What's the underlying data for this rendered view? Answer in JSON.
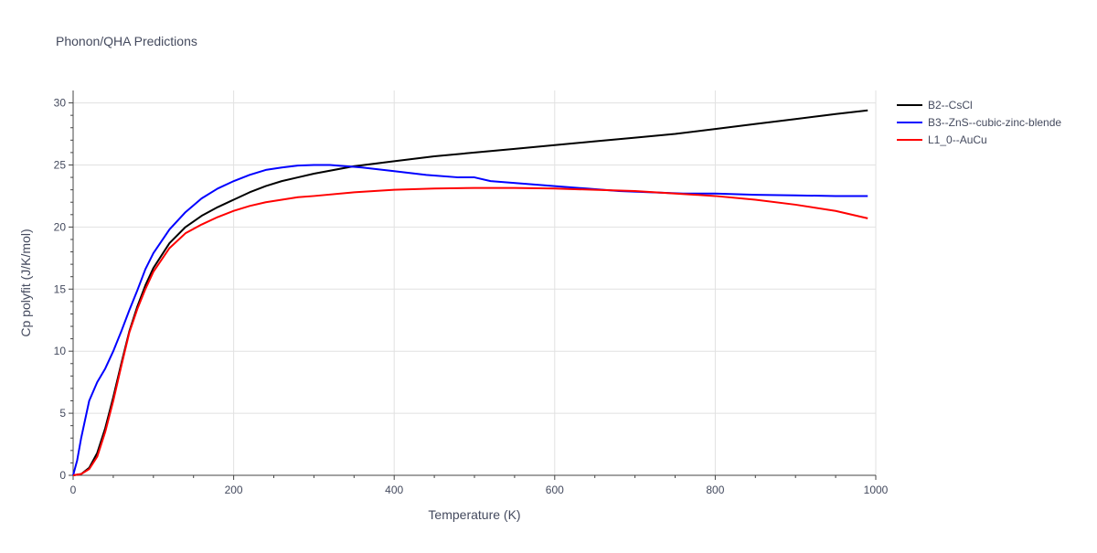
{
  "chart_data": {
    "type": "line",
    "title": "Phonon/QHA Predictions",
    "xlabel": "Temperature (K)",
    "ylabel": "Cp polyfit (J/K/mol)",
    "xlim": [
      0,
      1000
    ],
    "ylim": [
      0,
      31
    ],
    "xticks": [
      0,
      200,
      400,
      600,
      800,
      1000
    ],
    "yticks": [
      0,
      5,
      10,
      15,
      20,
      25,
      30
    ],
    "grid": true,
    "legend_position": "top-right",
    "series": [
      {
        "name": "B2--CsCl",
        "color": "#000000",
        "x": [
          0,
          10,
          20,
          30,
          40,
          50,
          60,
          70,
          80,
          90,
          100,
          120,
          140,
          160,
          180,
          200,
          220,
          240,
          260,
          280,
          300,
          350,
          400,
          450,
          500,
          550,
          600,
          650,
          700,
          750,
          800,
          850,
          900,
          950,
          990
        ],
        "y": [
          0,
          0.1,
          0.6,
          1.8,
          3.8,
          6.3,
          9.0,
          11.6,
          13.6,
          15.3,
          16.7,
          18.7,
          20.0,
          20.9,
          21.6,
          22.2,
          22.8,
          23.3,
          23.7,
          24.0,
          24.3,
          24.9,
          25.3,
          25.7,
          26.0,
          26.3,
          26.6,
          26.9,
          27.2,
          27.5,
          27.9,
          28.3,
          28.7,
          29.1,
          29.4
        ]
      },
      {
        "name": "B3--ZnS--cubic-zinc-blende",
        "color": "#0000ff",
        "x": [
          0,
          5,
          10,
          20,
          30,
          40,
          50,
          60,
          70,
          80,
          90,
          100,
          120,
          140,
          160,
          180,
          200,
          220,
          240,
          260,
          280,
          300,
          320,
          340,
          360,
          400,
          440,
          480,
          500,
          520,
          540,
          560,
          580,
          600,
          640,
          680,
          720,
          760,
          800,
          850,
          900,
          950,
          990
        ],
        "y": [
          0,
          1.2,
          3.0,
          6.0,
          7.5,
          8.6,
          10.0,
          11.6,
          13.3,
          14.9,
          16.6,
          17.9,
          19.8,
          21.2,
          22.3,
          23.1,
          23.7,
          24.2,
          24.6,
          24.8,
          24.95,
          25.0,
          25.0,
          24.9,
          24.8,
          24.5,
          24.2,
          24.0,
          24.0,
          23.7,
          23.6,
          23.5,
          23.4,
          23.3,
          23.1,
          22.9,
          22.8,
          22.7,
          22.7,
          22.6,
          22.55,
          22.5,
          22.5
        ]
      },
      {
        "name": "L1_0--AuCu",
        "color": "#ff0000",
        "x": [
          0,
          10,
          20,
          30,
          40,
          50,
          60,
          70,
          80,
          90,
          100,
          120,
          140,
          160,
          180,
          200,
          220,
          240,
          260,
          280,
          300,
          350,
          400,
          450,
          500,
          550,
          600,
          650,
          700,
          750,
          800,
          850,
          900,
          950,
          990
        ],
        "y": [
          0,
          0.1,
          0.5,
          1.5,
          3.5,
          6.0,
          8.8,
          11.5,
          13.4,
          15.0,
          16.4,
          18.3,
          19.5,
          20.2,
          20.8,
          21.3,
          21.7,
          22.0,
          22.2,
          22.4,
          22.5,
          22.8,
          23.0,
          23.1,
          23.15,
          23.15,
          23.1,
          23.0,
          22.9,
          22.7,
          22.5,
          22.2,
          21.8,
          21.3,
          20.7
        ]
      }
    ]
  }
}
